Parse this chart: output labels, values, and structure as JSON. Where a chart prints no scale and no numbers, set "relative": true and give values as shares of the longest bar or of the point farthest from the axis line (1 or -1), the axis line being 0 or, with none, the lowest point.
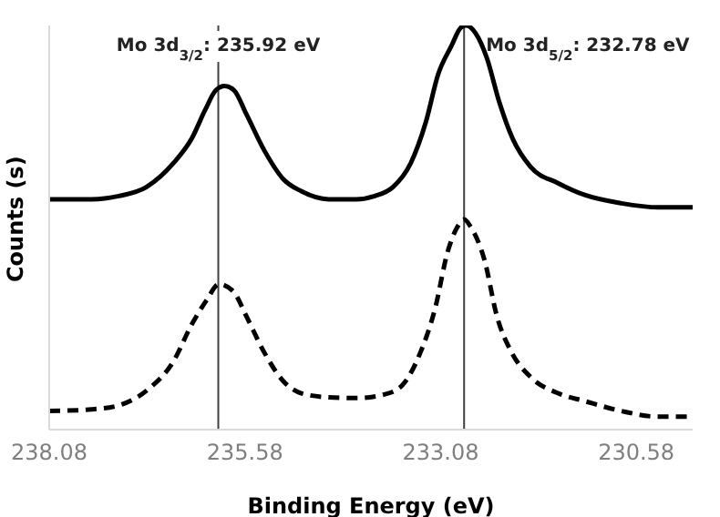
{
  "chart_data": {
    "type": "line",
    "xlabel": "Binding Energy (eV)",
    "ylabel": "Counts (s)",
    "relative": true,
    "xlim": [
      238.08,
      229.86
    ],
    "xticks": [
      238.08,
      235.58,
      233.08,
      230.58
    ],
    "marker": "none",
    "ref_lines": [
      {
        "axis": "x",
        "value": 235.92,
        "label": "Mo 3d$_{3/2}$: 235.92 eV",
        "color": "#404040"
      },
      {
        "axis": "x",
        "value": 232.78,
        "label": "Mo 3d$_{5/2}$: 232.78 eV",
        "color": "#404040"
      }
    ],
    "series": [
      {
        "color": "#000000",
        "line_style": "solid",
        "x": [
          238.08,
          237.54,
          237.19,
          236.84,
          236.49,
          236.26,
          236.09,
          235.95,
          235.84,
          235.72,
          235.56,
          235.33,
          235.09,
          234.86,
          234.51,
          234.16,
          233.92,
          233.69,
          233.46,
          233.27,
          233.11,
          232.94,
          232.82,
          232.75,
          232.63,
          232.49,
          232.33,
          232.16,
          231.93,
          231.58,
          231.23,
          230.77,
          230.3,
          229.86
        ],
        "values": [
          0.57,
          0.57,
          0.578,
          0.6,
          0.66,
          0.72,
          0.79,
          0.84,
          0.85,
          0.84,
          0.78,
          0.69,
          0.62,
          0.59,
          0.57,
          0.57,
          0.578,
          0.6,
          0.66,
          0.76,
          0.88,
          0.95,
          0.995,
          1,
          0.98,
          0.92,
          0.81,
          0.72,
          0.65,
          0.61,
          0.58,
          0.56,
          0.55,
          0.55
        ]
      },
      {
        "color": "#000000",
        "line_style": "dashed",
        "x": [
          238.08,
          237.54,
          237.19,
          236.84,
          236.49,
          236.26,
          236.07,
          235.91,
          235.72,
          235.56,
          235.33,
          235.09,
          234.86,
          234.51,
          234.16,
          233.8,
          233.57,
          233.34,
          233.15,
          232.99,
          232.87,
          232.78,
          232.69,
          232.52,
          232.36,
          232.17,
          231.93,
          231.58,
          231.23,
          230.77,
          230.3,
          229.86
        ],
        "values": [
          0.046,
          0.05,
          0.06,
          0.096,
          0.17,
          0.26,
          0.32,
          0.36,
          0.34,
          0.28,
          0.19,
          0.12,
          0.09,
          0.08,
          0.078,
          0.087,
          0.11,
          0.19,
          0.3,
          0.44,
          0.5,
          0.52,
          0.5,
          0.42,
          0.28,
          0.19,
          0.13,
          0.09,
          0.07,
          0.046,
          0.032,
          0.032
        ]
      }
    ]
  }
}
